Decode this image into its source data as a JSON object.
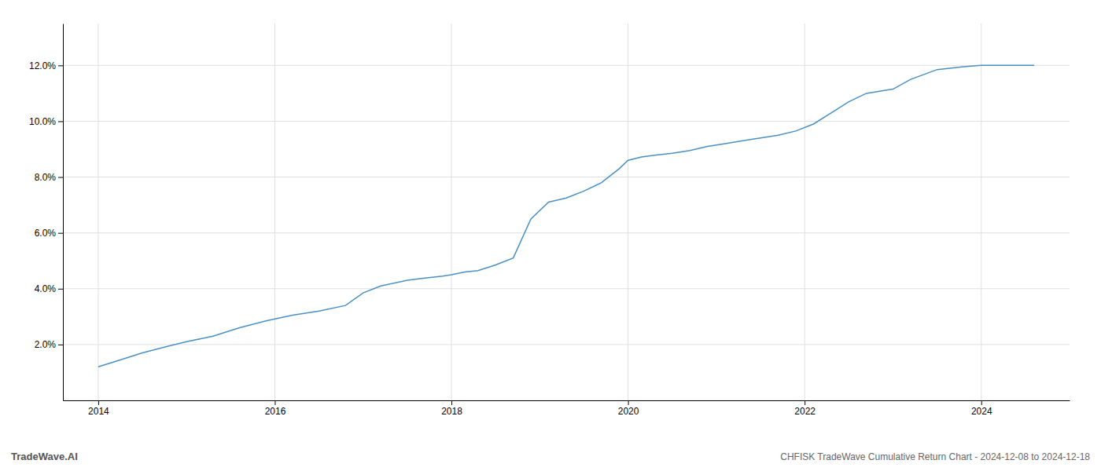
{
  "chart_data": {
    "type": "line",
    "title": "CHFISK TradeWave Cumulative Return Chart - 2024-12-08 to 2024-12-18",
    "annotations": [
      "TradeWave.AI"
    ],
    "color": "#4a90c4",
    "x": [
      2014.0,
      2014.2,
      2014.5,
      2014.8,
      2015.0,
      2015.3,
      2015.6,
      2015.9,
      2016.2,
      2016.5,
      2016.8,
      2017.0,
      2017.2,
      2017.5,
      2017.7,
      2017.9,
      2018.0,
      2018.15,
      2018.3,
      2018.5,
      2018.7,
      2018.9,
      2019.1,
      2019.3,
      2019.5,
      2019.7,
      2019.9,
      2020.0,
      2020.15,
      2020.3,
      2020.5,
      2020.7,
      2020.9,
      2021.1,
      2021.3,
      2021.5,
      2021.7,
      2021.9,
      2022.1,
      2022.3,
      2022.5,
      2022.7,
      2022.9,
      2023.0,
      2023.2,
      2023.5,
      2023.8,
      2024.0,
      2024.3,
      2024.6
    ],
    "values": [
      1.2,
      1.4,
      1.7,
      1.95,
      2.1,
      2.3,
      2.6,
      2.85,
      3.05,
      3.2,
      3.4,
      3.85,
      4.1,
      4.3,
      4.38,
      4.45,
      4.5,
      4.6,
      4.65,
      4.85,
      5.1,
      6.5,
      7.1,
      7.25,
      7.5,
      7.8,
      8.3,
      8.6,
      8.72,
      8.78,
      8.85,
      8.95,
      9.1,
      9.2,
      9.3,
      9.4,
      9.5,
      9.65,
      9.9,
      10.3,
      10.7,
      11.0,
      11.1,
      11.15,
      11.5,
      11.85,
      11.95,
      12.0,
      12.0,
      12.0
    ],
    "xlim": [
      2013.6,
      2025.0
    ],
    "ylim": [
      0.0,
      13.5
    ],
    "xticks": [
      2014,
      2016,
      2018,
      2020,
      2022,
      2024
    ],
    "yticks": [
      {
        "value": 2.0,
        "label": "2.0%"
      },
      {
        "value": 4.0,
        "label": "4.0%"
      },
      {
        "value": 6.0,
        "label": "6.0%"
      },
      {
        "value": 8.0,
        "label": "8.0%"
      },
      {
        "value": 10.0,
        "label": "10.0%"
      },
      {
        "value": 12.0,
        "label": "12.0%"
      }
    ],
    "grid": true
  }
}
